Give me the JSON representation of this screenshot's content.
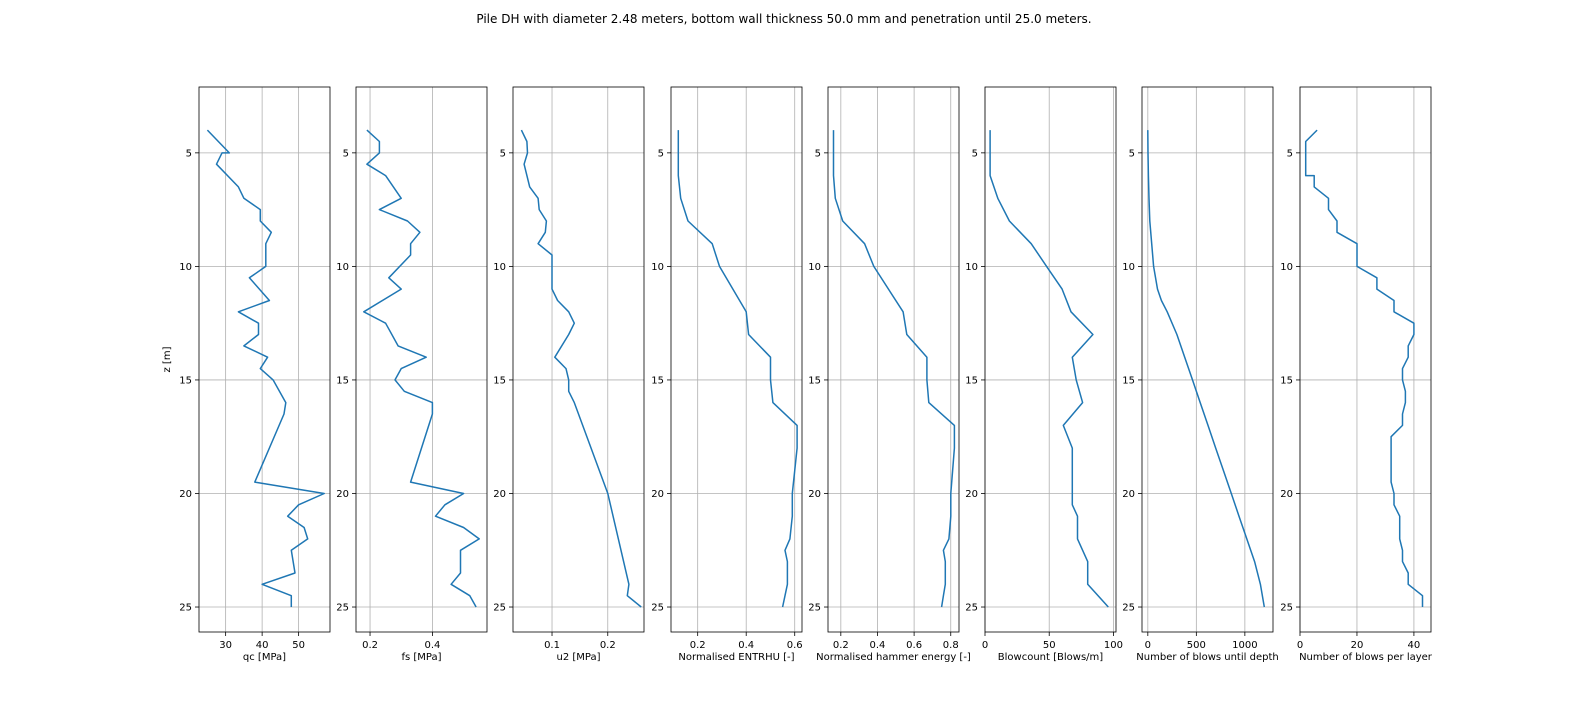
{
  "figure_title": "Pile DH with diameter 2.48 meters, bottom wall thickness 50.0 mm and penetration until 25.0 meters.",
  "line_color": "#1f77b4",
  "chart_data": [
    {
      "type": "line",
      "title": "",
      "xlabel": "qc [MPa]",
      "ylabel": "z [m]",
      "xlim": [
        22.7,
        58.6
      ],
      "ylim": [
        26.1,
        2.1
      ],
      "xticks": [
        30,
        40,
        50
      ],
      "yticks": [
        5,
        10,
        15,
        20,
        25
      ],
      "grid": true,
      "x": [
        25.0,
        31.0,
        29.0,
        27.5,
        33.5,
        35.0,
        39.5,
        39.5,
        42.5,
        41.0,
        41.0,
        36.5,
        42.0,
        33.5,
        39.0,
        39.0,
        35.0,
        41.5,
        39.5,
        43.0,
        46.5,
        46.0,
        38.0,
        57.0,
        50.0,
        47.0,
        51.5,
        52.5,
        48.0,
        49.0,
        40.0,
        48.0,
        48.0
      ],
      "y": [
        4.0,
        5.0,
        5.0,
        5.5,
        6.5,
        7.0,
        7.5,
        8.0,
        8.5,
        9.0,
        10.0,
        10.5,
        11.5,
        12.0,
        12.5,
        13.0,
        13.5,
        14.0,
        14.5,
        15.0,
        16.0,
        16.5,
        19.5,
        20.0,
        20.5,
        21.0,
        21.5,
        22.0,
        22.5,
        23.5,
        24.0,
        24.5,
        25.0
      ]
    },
    {
      "type": "line",
      "title": "",
      "xlabel": "fs [MPa]",
      "xlim": [
        0.155,
        0.575
      ],
      "ylim": [
        26.1,
        2.1
      ],
      "xticks": [
        0.2,
        0.4
      ],
      "yticks": [
        5,
        10,
        15,
        20,
        25
      ],
      "grid": true,
      "x": [
        0.19,
        0.23,
        0.23,
        0.19,
        0.25,
        0.3,
        0.23,
        0.32,
        0.36,
        0.33,
        0.33,
        0.26,
        0.3,
        0.18,
        0.25,
        0.29,
        0.38,
        0.3,
        0.28,
        0.31,
        0.4,
        0.4,
        0.33,
        0.5,
        0.44,
        0.41,
        0.5,
        0.55,
        0.49,
        0.49,
        0.46,
        0.52,
        0.54
      ],
      "y": [
        4.0,
        4.5,
        5.0,
        5.5,
        6.0,
        7.0,
        7.5,
        8.0,
        8.5,
        9.0,
        9.5,
        10.5,
        11.0,
        12.0,
        12.5,
        13.5,
        14.0,
        14.5,
        15.0,
        15.5,
        16.0,
        16.5,
        19.5,
        20.0,
        20.5,
        21.0,
        21.5,
        22.0,
        22.5,
        23.5,
        24.0,
        24.5,
        25.0
      ]
    },
    {
      "type": "line",
      "title": "",
      "xlabel": "u2 [MPa]",
      "xlim": [
        0.03,
        0.265
      ],
      "ylim": [
        26.1,
        2.1
      ],
      "xticks": [
        0.1,
        0.2
      ],
      "yticks": [
        5,
        10,
        15,
        20,
        25
      ],
      "grid": true,
      "x": [
        0.045,
        0.055,
        0.056,
        0.05,
        0.06,
        0.075,
        0.077,
        0.09,
        0.088,
        0.075,
        0.1,
        0.1,
        0.1,
        0.11,
        0.13,
        0.14,
        0.13,
        0.105,
        0.125,
        0.13,
        0.13,
        0.14,
        0.2,
        0.238,
        0.235,
        0.26
      ],
      "y": [
        4.0,
        4.5,
        5.0,
        5.5,
        6.5,
        7.0,
        7.5,
        8.0,
        8.5,
        9.0,
        9.5,
        10.5,
        11.0,
        11.5,
        12.0,
        12.5,
        13.0,
        14.0,
        14.5,
        15.0,
        15.5,
        16.0,
        20.0,
        24.0,
        24.5,
        25.0
      ]
    },
    {
      "type": "line",
      "title": "",
      "xlabel": "Normalised ENTRHU [-]",
      "xlim": [
        0.09,
        0.63
      ],
      "ylim": [
        26.1,
        2.1
      ],
      "xticks": [
        0.2,
        0.4,
        0.6
      ],
      "yticks": [
        5,
        10,
        15,
        20,
        25
      ],
      "grid": true,
      "x": [
        0.12,
        0.12,
        0.12,
        0.13,
        0.16,
        0.26,
        0.29,
        0.4,
        0.41,
        0.5,
        0.5,
        0.51,
        0.61,
        0.61,
        0.6,
        0.59,
        0.59,
        0.58,
        0.56,
        0.57,
        0.57,
        0.56,
        0.55
      ],
      "y": [
        4.0,
        5.0,
        6.0,
        7.0,
        8.0,
        9.0,
        10.0,
        12.0,
        13.0,
        14.0,
        15.0,
        16.0,
        17.0,
        18.0,
        19.0,
        20.0,
        21.0,
        22.0,
        22.5,
        23.0,
        24.0,
        24.5,
        25.0
      ]
    },
    {
      "type": "line",
      "title": "",
      "xlabel": "Normalised hammer energy [-]",
      "xlim": [
        0.13,
        0.845
      ],
      "ylim": [
        26.1,
        2.1
      ],
      "xticks": [
        0.2,
        0.4,
        0.6,
        0.8
      ],
      "yticks": [
        5,
        10,
        15,
        20,
        25
      ],
      "grid": true,
      "x": [
        0.16,
        0.16,
        0.16,
        0.17,
        0.21,
        0.33,
        0.38,
        0.54,
        0.56,
        0.67,
        0.67,
        0.68,
        0.82,
        0.82,
        0.81,
        0.8,
        0.8,
        0.79,
        0.76,
        0.77,
        0.77,
        0.76,
        0.75
      ],
      "y": [
        4.0,
        5.0,
        6.0,
        7.0,
        8.0,
        9.0,
        10.0,
        12.0,
        13.0,
        14.0,
        15.0,
        16.0,
        17.0,
        18.0,
        19.0,
        20.0,
        21.0,
        22.0,
        22.5,
        23.0,
        24.0,
        24.5,
        25.0
      ]
    },
    {
      "type": "line",
      "title": "",
      "xlabel": "Blowcount [Blows/m]",
      "xlim": [
        0,
        102
      ],
      "ylim": [
        26.1,
        2.1
      ],
      "xticks": [
        0,
        50,
        100
      ],
      "yticks": [
        5,
        10,
        15,
        20,
        25
      ],
      "grid": true,
      "x": [
        4,
        4,
        4,
        10,
        19,
        36,
        48,
        60,
        67,
        84,
        68,
        71,
        76,
        61,
        68,
        68,
        68,
        68,
        72,
        72,
        80,
        80,
        96
      ],
      "y": [
        4.0,
        5.0,
        6.0,
        7.0,
        8.0,
        9.0,
        10.0,
        11.0,
        12.0,
        13.0,
        14.0,
        15.0,
        16.0,
        17.0,
        18.0,
        19.0,
        20.0,
        20.5,
        21.0,
        22.0,
        23.0,
        24.0,
        25.0
      ]
    },
    {
      "type": "line",
      "title": "",
      "xlabel": "Number of blows until depth",
      "xlim": [
        -60,
        1290
      ],
      "ylim": [
        26.1,
        2.1
      ],
      "xticks": [
        0,
        500,
        1000
      ],
      "yticks": [
        5,
        10,
        15,
        20,
        25
      ],
      "grid": true,
      "x": [
        0,
        2,
        6,
        12,
        20,
        40,
        60,
        100,
        140,
        200,
        300,
        380,
        460,
        540,
        620,
        700,
        780,
        860,
        940,
        1020,
        1100,
        1160,
        1200
      ],
      "y": [
        4.0,
        5.0,
        6.0,
        7.0,
        8.0,
        9.0,
        10.0,
        11.0,
        11.5,
        12.0,
        13.0,
        14.0,
        15.0,
        16.0,
        17.0,
        18.0,
        19.0,
        20.0,
        21.0,
        22.0,
        23.0,
        24.0,
        25.0
      ]
    },
    {
      "type": "line",
      "title": "",
      "xlabel": "Number of blows per layer",
      "xlim": [
        0,
        46
      ],
      "ylim": [
        26.1,
        2.1
      ],
      "xticks": [
        0,
        20,
        40
      ],
      "yticks": [
        5,
        10,
        15,
        20,
        25
      ],
      "grid": true,
      "x": [
        6,
        2,
        2,
        2,
        2,
        5,
        5,
        10,
        10,
        13,
        13,
        20,
        20,
        27,
        27,
        33,
        33,
        40,
        40,
        38,
        38,
        36,
        36,
        37,
        37,
        36,
        36,
        32,
        32,
        32,
        33,
        33,
        35,
        35,
        36,
        36,
        38,
        38,
        43,
        43
      ],
      "y": [
        4.0,
        4.5,
        5.0,
        5.5,
        6.0,
        6.0,
        6.5,
        7.0,
        7.5,
        8.0,
        8.5,
        9.0,
        10.0,
        10.5,
        11.0,
        11.5,
        12.0,
        12.5,
        13.0,
        13.5,
        14.0,
        14.5,
        15.0,
        15.5,
        16.0,
        16.5,
        17.0,
        17.5,
        19.0,
        19.5,
        20.0,
        20.5,
        21.0,
        22.0,
        22.5,
        23.0,
        23.5,
        24.0,
        24.5,
        25.0
      ]
    }
  ]
}
